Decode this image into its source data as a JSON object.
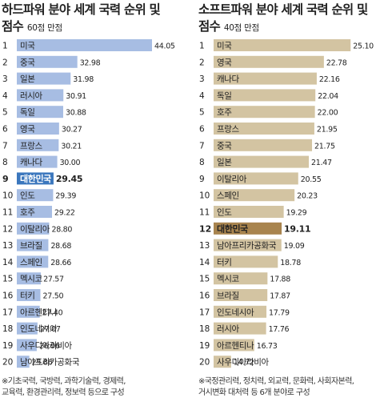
{
  "chart_data": [
    {
      "type": "bar",
      "orientation": "horizontal",
      "title_line1": "하드파워 분야 세계 국력 순위 및",
      "title_line2": "점수",
      "subtitle": "60점 만점",
      "xlim": [
        24,
        45
      ],
      "highlight_rank": 9,
      "colors": {
        "bar": "#a7bde3",
        "highlight": "#3b77bd"
      },
      "ranks": [
        "1",
        "2",
        "3",
        "4",
        "5",
        "6",
        "7",
        "8",
        "9",
        "10",
        "11",
        "12",
        "13",
        "14",
        "15",
        "16",
        "17",
        "18",
        "19",
        "20"
      ],
      "categories": [
        "미국",
        "중국",
        "일본",
        "러시아",
        "독일",
        "영국",
        "프랑스",
        "캐나다",
        "대한민국",
        "인도",
        "호주",
        "이탈리아",
        "브라질",
        "스페인",
        "멕시코",
        "터키",
        "아르헨티나",
        "인도네시아",
        "사우디아라비아",
        "남아프리카공화국"
      ],
      "values": [
        44.05,
        32.98,
        31.98,
        30.91,
        30.88,
        30.27,
        30.21,
        30.0,
        29.45,
        29.39,
        29.22,
        28.8,
        28.68,
        28.66,
        27.57,
        27.5,
        27.4,
        27.07,
        26.96,
        25.86
      ],
      "value_labels": [
        "44.05",
        "32.98",
        "31.98",
        "30.91",
        "30.88",
        "30.27",
        "30.21",
        "30.00",
        "29.45",
        "29.39",
        "29.22",
        "28.80",
        "28.68",
        "28.66",
        "27.57",
        "27.50",
        "27.40",
        "27.07",
        "26.96",
        "25.86"
      ],
      "note_line1": "※기초국력, 국방력, 과학기술력, 경제력,",
      "note_line2": "교육력, 환경관리력, 정보력 등으로 구성"
    },
    {
      "type": "bar",
      "orientation": "horizontal",
      "title_line1": "소프트파워 분야 세계 국력 순위 및",
      "title_line2": "점수",
      "subtitle": "40점 만점",
      "xlim": [
        13.2,
        25.5
      ],
      "highlight_rank": 12,
      "colors": {
        "bar": "#d3c4a2",
        "highlight": "#a8844e"
      },
      "ranks": [
        "1",
        "2",
        "3",
        "4",
        "5",
        "6",
        "7",
        "8",
        "9",
        "10",
        "11",
        "12",
        "13",
        "14",
        "15",
        "16",
        "17",
        "18",
        "19",
        "20"
      ],
      "categories": [
        "미국",
        "영국",
        "캐나다",
        "독일",
        "호주",
        "프랑스",
        "중국",
        "일본",
        "이탈리아",
        "스페인",
        "인도",
        "대한민국",
        "남아프리카공화국",
        "터키",
        "멕시코",
        "브라질",
        "인도네시아",
        "러시아",
        "아르헨티나",
        "사우디아라비아"
      ],
      "values": [
        25.1,
        22.78,
        22.16,
        22.04,
        22.0,
        21.95,
        21.75,
        21.47,
        20.55,
        20.23,
        19.29,
        19.11,
        19.09,
        18.78,
        17.88,
        17.87,
        17.79,
        17.76,
        16.73,
        14.72
      ],
      "value_labels": [
        "25.10",
        "22.78",
        "22.16",
        "22.04",
        "22.00",
        "21.95",
        "21.75",
        "21.47",
        "20.55",
        "20.23",
        "19.29",
        "19.11",
        "19.09",
        "18.78",
        "17.88",
        "17.87",
        "17.79",
        "17.76",
        "16.73",
        "14.72"
      ],
      "note_line1": "※국정관리력, 정치력, 외교력, 문화력, 사회자본력,",
      "note_line2": "거시변화 대처력 등 6개 분야로 구성"
    }
  ]
}
